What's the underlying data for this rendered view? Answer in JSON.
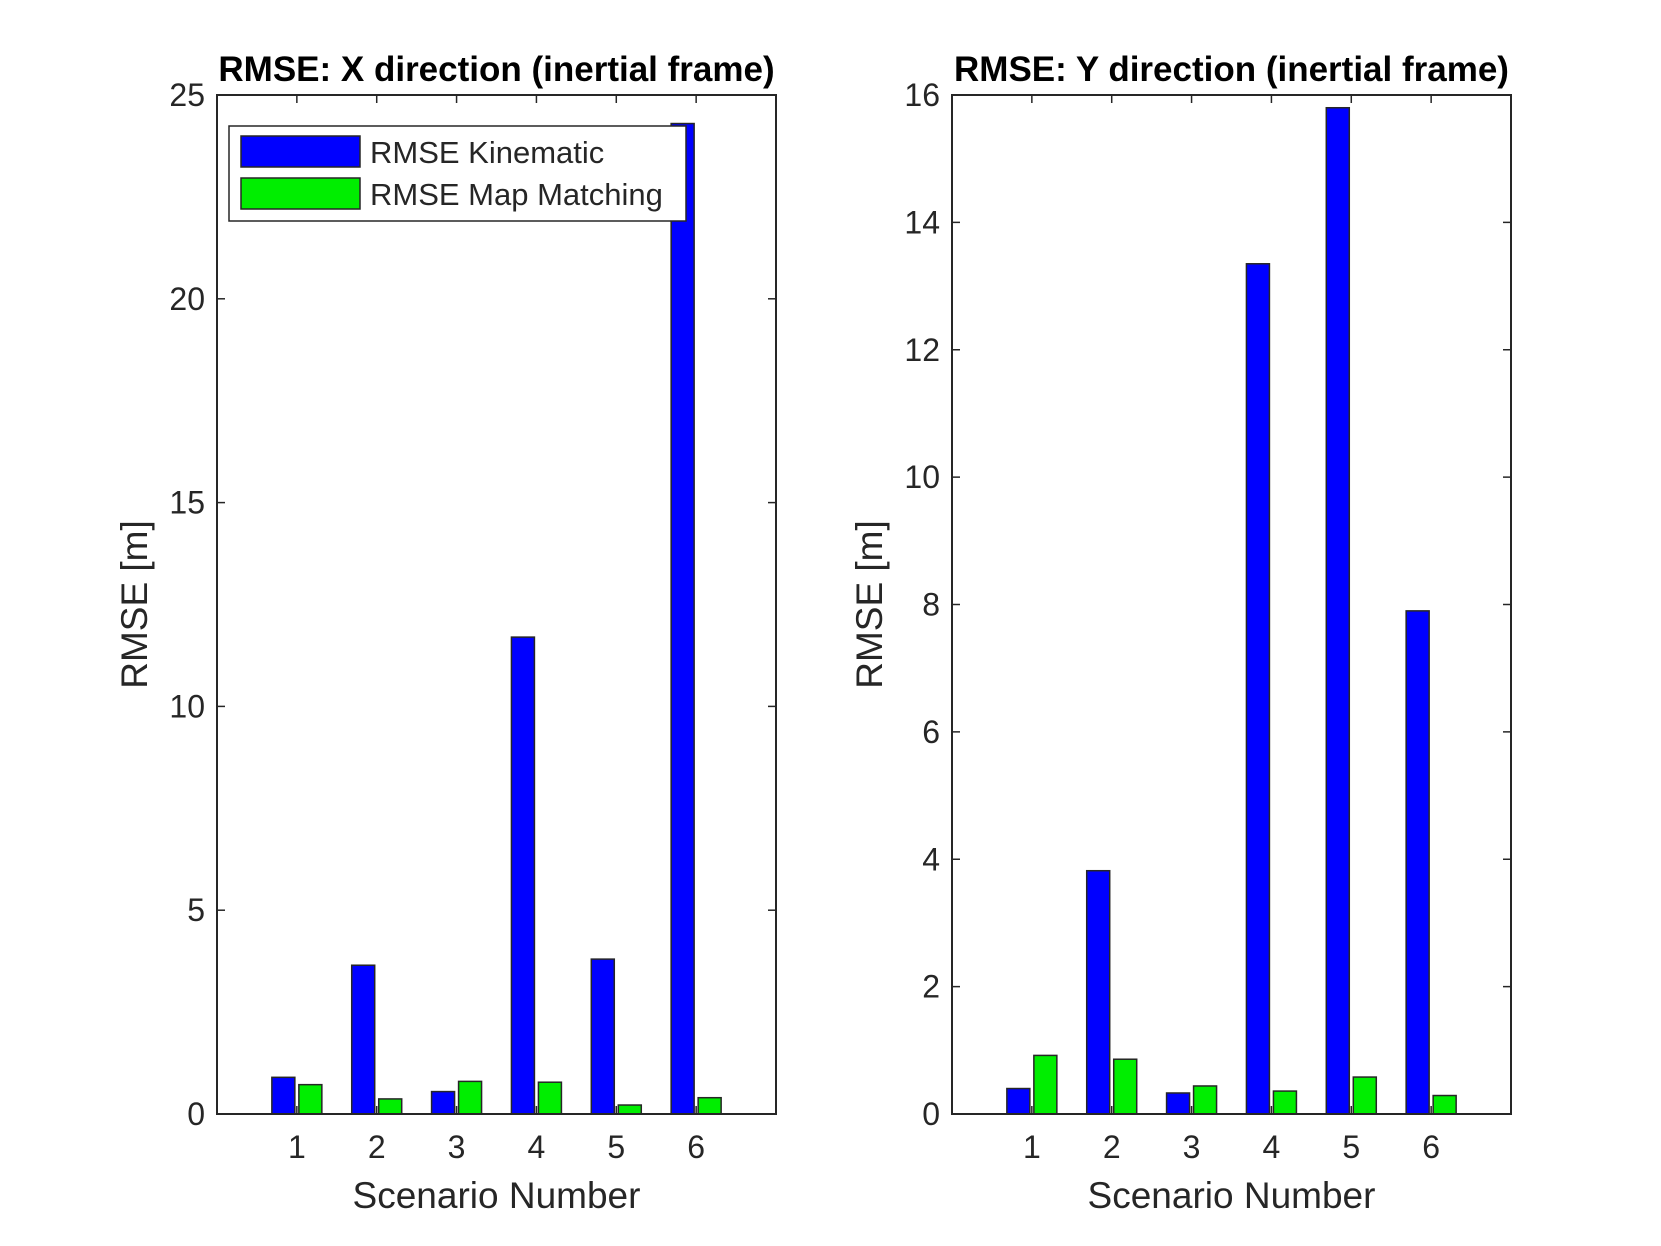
{
  "chart_data": [
    {
      "type": "bar",
      "title": "RMSE: X direction (inertial frame)",
      "xlabel": "Scenario Number",
      "ylabel": "RMSE [m]",
      "categories": [
        "1",
        "2",
        "3",
        "4",
        "5",
        "6"
      ],
      "ylim": [
        0,
        25
      ],
      "yticks": [
        0,
        5,
        10,
        15,
        20,
        25
      ],
      "grid": false,
      "legend_position": "top-left",
      "series": [
        {
          "name": "RMSE Kinematic",
          "color": "#0000ff",
          "values": [
            0.9,
            3.65,
            0.55,
            11.7,
            3.8,
            24.3
          ]
        },
        {
          "name": "RMSE Map Matching",
          "color": "#00ee00",
          "values": [
            0.72,
            0.37,
            0.8,
            0.78,
            0.22,
            0.4
          ]
        }
      ]
    },
    {
      "type": "bar",
      "title": "RMSE: Y direction (inertial frame)",
      "xlabel": "Scenario Number",
      "ylabel": "RMSE [m]",
      "categories": [
        "1",
        "2",
        "3",
        "4",
        "5",
        "6"
      ],
      "ylim": [
        0,
        16
      ],
      "yticks": [
        0,
        2,
        4,
        6,
        8,
        10,
        12,
        14,
        16
      ],
      "grid": false,
      "series": [
        {
          "name": "RMSE Kinematic",
          "color": "#0000ff",
          "values": [
            0.4,
            3.82,
            0.33,
            13.35,
            15.8,
            7.9
          ]
        },
        {
          "name": "RMSE Map Matching",
          "color": "#00ee00",
          "values": [
            0.92,
            0.86,
            0.44,
            0.36,
            0.58,
            0.29
          ]
        }
      ]
    }
  ]
}
